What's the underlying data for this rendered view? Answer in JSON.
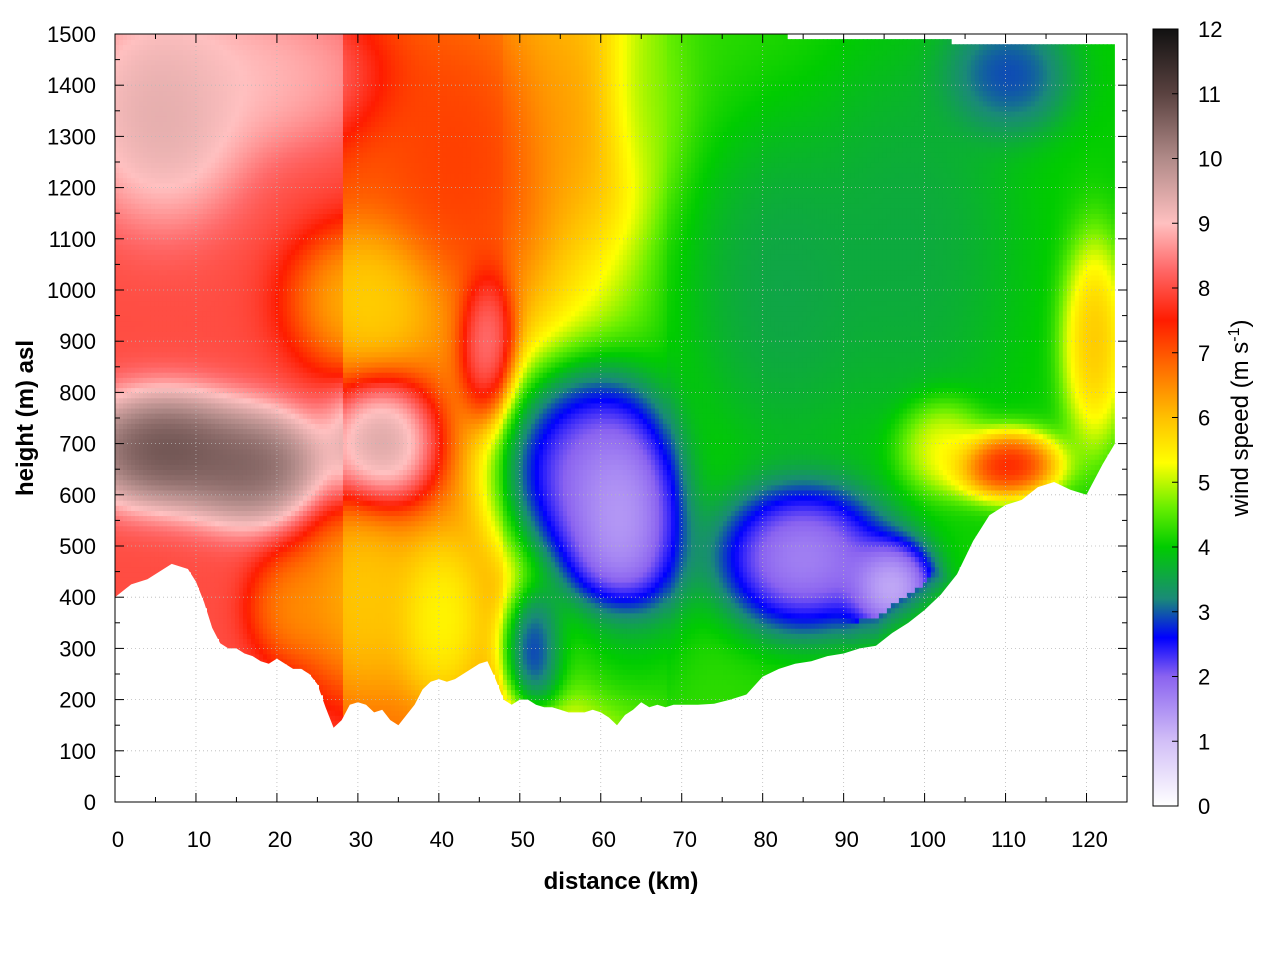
{
  "chart_data": {
    "type": "heatmap",
    "title": "",
    "xlabel": "distance (km)",
    "ylabel": "height (m) asl",
    "colorbar_label": "wind speed (m s-1)",
    "colorbar_label_parts": {
      "prefix": "wind speed (m s",
      "exponent": "-1",
      "suffix": ")"
    },
    "xlim": [
      0,
      125
    ],
    "ylim": [
      0,
      1500
    ],
    "clim": [
      0,
      12
    ],
    "x_ticks": [
      0,
      10,
      20,
      30,
      40,
      50,
      60,
      70,
      80,
      90,
      100,
      110,
      120
    ],
    "y_ticks": [
      0,
      100,
      200,
      300,
      400,
      500,
      600,
      700,
      800,
      900,
      1000,
      1100,
      1200,
      1300,
      1400,
      1500
    ],
    "colorbar_ticks": [
      0,
      1,
      2,
      3,
      4,
      5,
      6,
      7,
      8,
      9,
      10,
      11,
      12
    ],
    "grid": true,
    "colormap": [
      {
        "v": 0,
        "color": "#ffffff"
      },
      {
        "v": 1,
        "color": "#d2bff7"
      },
      {
        "v": 2,
        "color": "#8a63f0"
      },
      {
        "v": 2.6,
        "color": "#0000ff"
      },
      {
        "v": 3.2,
        "color": "#1a8a78"
      },
      {
        "v": 4,
        "color": "#00cc00"
      },
      {
        "v": 4.6,
        "color": "#66ee00"
      },
      {
        "v": 5.3,
        "color": "#ffff00"
      },
      {
        "v": 6,
        "color": "#ffc000"
      },
      {
        "v": 6.8,
        "color": "#ff6a00"
      },
      {
        "v": 7.5,
        "color": "#ff1c00"
      },
      {
        "v": 8.3,
        "color": "#ff6a6a"
      },
      {
        "v": 9,
        "color": "#ffc0c0"
      },
      {
        "v": 10,
        "color": "#b08a88"
      },
      {
        "v": 11,
        "color": "#5a4240"
      },
      {
        "v": 12,
        "color": "#111111"
      }
    ],
    "terrain_height": {
      "x": [
        0,
        2,
        4,
        6,
        7,
        9,
        10,
        11,
        12,
        13,
        14,
        15,
        16,
        17,
        18,
        19,
        20,
        21,
        22,
        23,
        24,
        25,
        26,
        27,
        28,
        29,
        30,
        31,
        32,
        33,
        34,
        35,
        36,
        37,
        38,
        39,
        40,
        41,
        42,
        43,
        44,
        45,
        46,
        47,
        48,
        49,
        50,
        51,
        52,
        53,
        54,
        55,
        56,
        57,
        58,
        59,
        60,
        61,
        62,
        63,
        64,
        65,
        66,
        67,
        68,
        69,
        70,
        72,
        74,
        76,
        78,
        80,
        82,
        84,
        86,
        88,
        90,
        92,
        94,
        96,
        98,
        100,
        102,
        104,
        106,
        108,
        110,
        112,
        114,
        116,
        118,
        120,
        122,
        123.5
      ],
      "y": [
        400,
        425,
        435,
        455,
        465,
        455,
        430,
        390,
        340,
        310,
        300,
        300,
        290,
        285,
        275,
        270,
        280,
        270,
        260,
        260,
        250,
        230,
        185,
        145,
        160,
        190,
        195,
        190,
        175,
        180,
        160,
        150,
        170,
        190,
        220,
        235,
        240,
        235,
        240,
        250,
        260,
        270,
        275,
        240,
        200,
        190,
        200,
        200,
        190,
        185,
        185,
        180,
        175,
        175,
        175,
        180,
        175,
        165,
        150,
        170,
        180,
        195,
        185,
        190,
        185,
        190,
        190,
        190,
        192,
        200,
        210,
        245,
        260,
        270,
        275,
        285,
        290,
        300,
        305,
        330,
        350,
        375,
        405,
        445,
        510,
        560,
        580,
        590,
        615,
        625,
        610,
        600,
        660,
        700
      ]
    },
    "data_top_height": {
      "x": [
        1,
        62,
        63,
        123.5
      ],
      "y": [
        1500,
        1500,
        1500,
        1470
      ]
    },
    "wind_speed_features": [
      {
        "x": 6,
        "y": 1350,
        "value": 9.8,
        "sx": 8,
        "sy": 160
      },
      {
        "x": 16,
        "y": 1420,
        "value": 9.2,
        "sx": 12,
        "sy": 110
      },
      {
        "x": 6,
        "y": 690,
        "value": 11.6,
        "sx": 8,
        "sy": 85
      },
      {
        "x": 17,
        "y": 655,
        "value": 11.2,
        "sx": 7,
        "sy": 85
      },
      {
        "x": 33,
        "y": 700,
        "value": 10.3,
        "sx": 5,
        "sy": 95
      },
      {
        "x": 31,
        "y": 980,
        "value": 5.5,
        "sx": 7,
        "sy": 110
      },
      {
        "x": 30,
        "y": 400,
        "value": 5.6,
        "sx": 6,
        "sy": 150
      },
      {
        "x": 22,
        "y": 380,
        "value": 6.2,
        "sx": 4,
        "sy": 80
      },
      {
        "x": 40,
        "y": 360,
        "value": 5.0,
        "sx": 4,
        "sy": 120
      },
      {
        "x": 46,
        "y": 900,
        "value": 9.0,
        "sx": 2.5,
        "sy": 110
      },
      {
        "x": 44,
        "y": 1250,
        "value": 7.4,
        "sx": 8,
        "sy": 200
      },
      {
        "x": 58,
        "y": 1350,
        "value": 6.5,
        "sx": 7,
        "sy": 200
      },
      {
        "x": 65,
        "y": 1380,
        "value": 4.5,
        "sx": 4,
        "sy": 140
      },
      {
        "x": 62,
        "y": 550,
        "value": 0.3,
        "sx": 6,
        "sy": 190
      },
      {
        "x": 56,
        "y": 650,
        "value": 1.2,
        "sx": 7,
        "sy": 150
      },
      {
        "x": 52,
        "y": 300,
        "value": 1.5,
        "sx": 3,
        "sy": 90
      },
      {
        "x": 60,
        "y": 310,
        "value": 4.2,
        "sx": 8,
        "sy": 80
      },
      {
        "x": 85,
        "y": 480,
        "value": 0.8,
        "sx": 8,
        "sy": 110
      },
      {
        "x": 96,
        "y": 420,
        "value": 0.3,
        "sx": 4,
        "sy": 70
      },
      {
        "x": 82,
        "y": 1000,
        "value": 3.3,
        "sx": 9,
        "sy": 250
      },
      {
        "x": 98,
        "y": 1100,
        "value": 3.4,
        "sx": 10,
        "sy": 300
      },
      {
        "x": 110,
        "y": 1420,
        "value": 2.5,
        "sx": 6,
        "sy": 90
      },
      {
        "x": 110,
        "y": 660,
        "value": 8.6,
        "sx": 5,
        "sy": 50
      },
      {
        "x": 102,
        "y": 700,
        "value": 5.8,
        "sx": 4,
        "sy": 70
      },
      {
        "x": 121,
        "y": 900,
        "value": 6.5,
        "sx": 3,
        "sy": 150
      }
    ]
  }
}
